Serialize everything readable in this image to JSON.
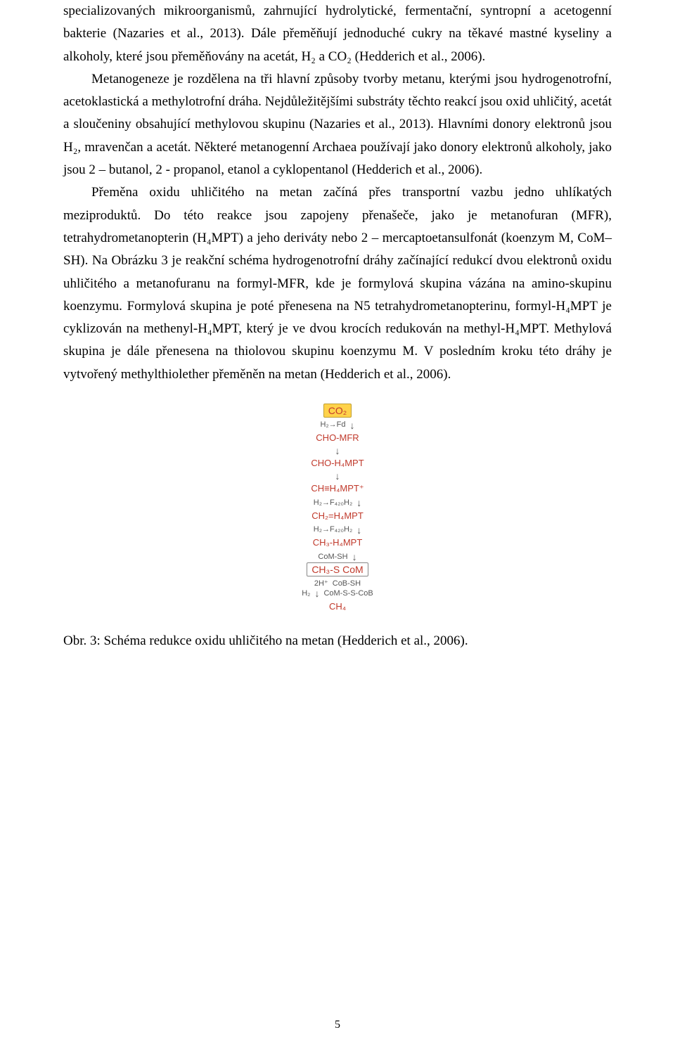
{
  "colors": {
    "text": "#000000",
    "bg": "#ffffff",
    "diagram_text": "#555555",
    "highlight_bg": "#ffd24a",
    "highlight_border": "#bfa030",
    "accent_red": "#c0392b"
  },
  "typography": {
    "body_family": "Times New Roman",
    "body_size_pt": 12,
    "line_height": 1.7,
    "diagram_family": "Arial",
    "diagram_size_pt": 9
  },
  "paragraphs": {
    "p1": "specializovaných mikroorganismů, zahrnující hydrolytické, fermentační, syntropní a acetogenní bakterie (Nazaries et al., 2013). Dále přeměňují jednoduché cukry na těkavé mastné kyseliny a alkoholy, které jsou přeměňovány na acetát, H₂ a CO₂ (Hedderich et al., 2006).",
    "p2": "Metanogeneze je rozdělena na tři hlavní způsoby tvorby metanu, kterými jsou hydrogenotrofní, acetoklastická a methylotrofní dráha. Nejdůležitějšími substráty těchto reakcí jsou oxid uhličitý, acetát a sloučeniny obsahující methylovou skupinu (Nazaries et al., 2013). Hlavními donory elektronů jsou H₂, mravenčan a acetát. Některé metanogenní Archaea používají jako donory elektronů alkoholy, jako jsou 2 – butanol, 2 - propanol, etanol a cyklopentanol (Hedderich et al., 2006).",
    "p3": "Přeměna oxidu uhličitého na metan začíná přes transportní vazbu jedno uhlíkatých meziproduktů. Do této reakce jsou zapojeny přenašeče, jako je metanofuran (MFR), tetrahydrometanopterin (H₄MPT) a jeho deriváty nebo 2 – mercaptoetansulfonát (koenzym M, CoM–SH). Na Obrázku 3 je reakční schéma hydrogenotrofní dráhy začínající redukcí dvou elektronů oxidu uhličitého a metanofuranu na formyl-MFR, kde je formylová skupina vázána na amino-skupinu koenzymu. Formylová skupina je poté přenesena na N5 tetrahydrometanopterinu, formyl-H₄MPT je cyklizován na methenyl-H₄MPT, který je ve dvou krocích redukován na methyl-H₄MPT. Methylová skupina je dále přenesena na thiolovou skupinu koenzymu M. V posledním kroku této dráhy je vytvořený methylthiolether přeměněn na metan (Hedderich et al., 2006)."
  },
  "diagram": {
    "type": "flowchart",
    "highlight_bg": "#ffd24a",
    "accent_red": "#c0392b",
    "box_border": "#888888",
    "nodes": {
      "co2": "CO₂",
      "cho_mfr": "CHO-MFR",
      "cho_h4mpt": "CHO-H₄MPT",
      "ch_h4mpt": "CH≡H₄MPT⁺",
      "ch2_h4mpt": "CH₂=H₄MPT",
      "ch3_h4mpt": "CH₃-H₄MPT",
      "ch3_scom": "CH₃-S CoM",
      "ch4": "CH₄"
    },
    "side_reactants": {
      "r1_left": "H₂→Fd",
      "r3_right": "",
      "r4_left": "H₂→F₄₂₀H₂",
      "r5_left": "H₂→F₄₂₀H₂",
      "r6_left": "CoM-SH",
      "r7_left_a": "2H⁺",
      "r7_left_b": "H₂",
      "r7_mid_a": "CoB-SH",
      "r7_mid_b": "CoM-S-S-CoB"
    }
  },
  "caption": "Obr. 3: Schéma redukce oxidu uhličitého na metan (Hedderich et al., 2006).",
  "page_number": "5"
}
